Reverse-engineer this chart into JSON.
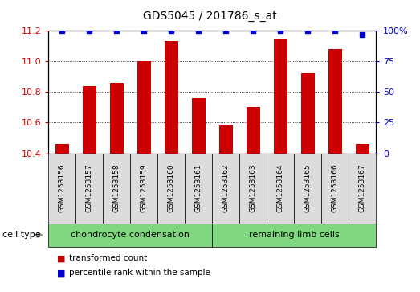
{
  "title": "GDS5045 / 201786_s_at",
  "samples": [
    "GSM1253156",
    "GSM1253157",
    "GSM1253158",
    "GSM1253159",
    "GSM1253160",
    "GSM1253161",
    "GSM1253162",
    "GSM1253163",
    "GSM1253164",
    "GSM1253165",
    "GSM1253166",
    "GSM1253167"
  ],
  "red_values": [
    10.46,
    10.84,
    10.86,
    11.0,
    11.13,
    10.76,
    10.58,
    10.7,
    11.15,
    10.92,
    11.08,
    10.46
  ],
  "blue_values": [
    100,
    100,
    100,
    100,
    100,
    100,
    100,
    100,
    100,
    100,
    100,
    97
  ],
  "ylim_left": [
    10.4,
    11.2
  ],
  "ylim_right": [
    0,
    100
  ],
  "yticks_left": [
    10.4,
    10.6,
    10.8,
    11.0,
    11.2
  ],
  "yticks_right": [
    0,
    25,
    50,
    75,
    100
  ],
  "ytick_labels_right": [
    "0",
    "25",
    "50",
    "75",
    "100%"
  ],
  "cell_type_label": "cell type",
  "groups": [
    {
      "label": "chondrocyte condensation",
      "n_cols": 6,
      "color": "#7FD87F"
    },
    {
      "label": "remaining limb cells",
      "n_cols": 6,
      "color": "#7FD87F"
    }
  ],
  "legend_red": "transformed count",
  "legend_blue": "percentile rank within the sample",
  "bar_color": "#CC0000",
  "dot_color": "#0000CC",
  "sample_box_color": "#DCDCDC",
  "bar_width": 0.5,
  "dot_size": 18,
  "title_fontsize": 10,
  "axis_fontsize": 8,
  "sample_fontsize": 6.5,
  "group_fontsize": 8,
  "legend_fontsize": 7.5
}
